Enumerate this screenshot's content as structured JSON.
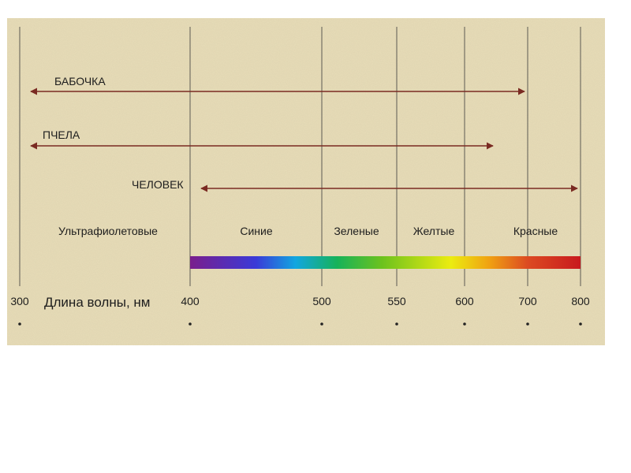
{
  "colors": {
    "background": "#e8ddb8",
    "range_arrow": "#7a2a22",
    "gridline": "#3a3a3a",
    "text": "#1d1d1d"
  },
  "ranges": [
    {
      "label": "БАБОЧКА",
      "from": 300,
      "to": 700
    },
    {
      "label": "ПЧЕЛА",
      "from": 300,
      "to": 650
    },
    {
      "label": "ЧЕЛОВЕК",
      "from": 400,
      "to": 800
    }
  ],
  "bands": [
    {
      "label": "Ультрафиолетовые"
    },
    {
      "label": "Синие"
    },
    {
      "label": "Зеленые"
    },
    {
      "label": "Желтые"
    },
    {
      "label": "Красные"
    }
  ],
  "axis": {
    "title": "Длина волны, нм",
    "ticks": [
      300,
      400,
      500,
      550,
      600,
      700,
      800
    ]
  },
  "spectrum": {
    "from": 400,
    "to": 800,
    "stops": [
      {
        "nm": 400,
        "color": "#7a1e8c"
      },
      {
        "nm": 450,
        "color": "#3a3ad8"
      },
      {
        "nm": 480,
        "color": "#12a6e0"
      },
      {
        "nm": 510,
        "color": "#16b25a"
      },
      {
        "nm": 540,
        "color": "#6cc21e"
      },
      {
        "nm": 590,
        "color": "#ecec10"
      },
      {
        "nm": 640,
        "color": "#f0a012"
      },
      {
        "nm": 700,
        "color": "#dc4a22"
      },
      {
        "nm": 800,
        "color": "#c81a1e"
      }
    ]
  }
}
